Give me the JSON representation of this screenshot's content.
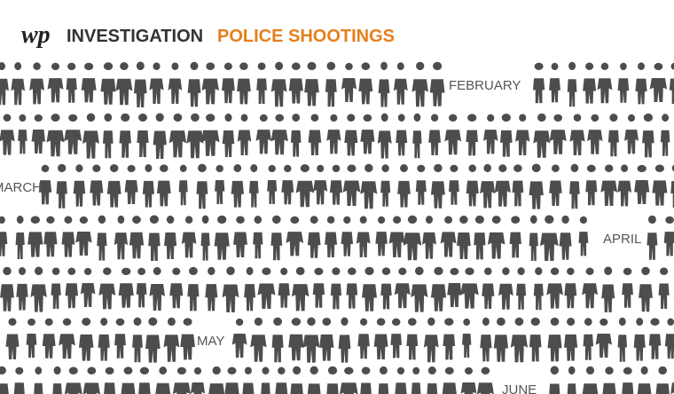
{
  "header": {
    "logo": "wp",
    "section": "INVESTIGATION",
    "title": "POLICE SHOOTINGS"
  },
  "months": [
    "FEBRUARY",
    "MARCH",
    "APRIL",
    "MAY",
    "JUNE"
  ]
}
